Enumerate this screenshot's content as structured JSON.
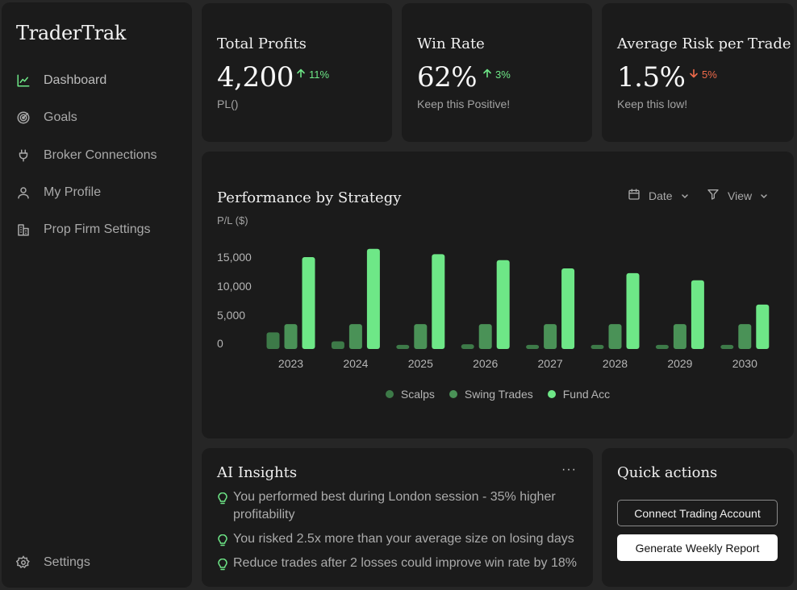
{
  "app": {
    "name": "TraderTrak"
  },
  "sidebar": {
    "items": [
      {
        "label": "Dashboard",
        "icon": "chart-line-icon",
        "active": true
      },
      {
        "label": "Goals",
        "icon": "target-icon",
        "active": false
      },
      {
        "label": "Broker Connections",
        "icon": "plug-icon",
        "active": false
      },
      {
        "label": "My Profile",
        "icon": "user-icon",
        "active": false
      },
      {
        "label": "Prop Firm Settings",
        "icon": "building-icon",
        "active": false
      }
    ],
    "settings_label": "Settings"
  },
  "stats": [
    {
      "title": "Total Profits",
      "value": "4,200",
      "delta": "11%",
      "direction": "up",
      "subtitle": "PL()"
    },
    {
      "title": "Win Rate",
      "value": "62%",
      "delta": "3%",
      "direction": "up",
      "subtitle": "Keep this Positive!"
    },
    {
      "title": "Average Risk per Trade",
      "value": "1.5%",
      "delta": "5%",
      "direction": "down",
      "subtitle": "Keep this low!"
    }
  ],
  "performance": {
    "title": "Performance by Strategy",
    "date_label": "Date",
    "view_label": "View"
  },
  "chart_data": {
    "type": "bar",
    "title": "Performance by Strategy",
    "ylabel": "P/L ($)",
    "xlabel": "",
    "categories": [
      "2023",
      "2024",
      "2025",
      "2026",
      "2027",
      "2028",
      "2029",
      "2030"
    ],
    "y_ticks": [
      "15,000",
      "10,000",
      "5,000",
      "0"
    ],
    "y_tick_values": [
      15000,
      10000,
      5000,
      0
    ],
    "ylim": [
      0,
      17000
    ],
    "grid": false,
    "legend_position": "bottom",
    "series": [
      {
        "name": "Scalps",
        "color": "#3d7a48",
        "values": [
          2800,
          1300,
          700,
          800,
          700,
          700,
          700,
          700
        ]
      },
      {
        "name": "Swing Trades",
        "color": "#4a9257",
        "values": [
          4200,
          4200,
          4200,
          4200,
          4200,
          4200,
          4200,
          4200
        ]
      },
      {
        "name": "Fund Acc",
        "color": "#6ee787",
        "values": [
          15500,
          16900,
          16000,
          15000,
          13600,
          12800,
          11600,
          7500
        ]
      }
    ]
  },
  "ai_insights": {
    "title": "AI Insights",
    "more_label": "···",
    "items": [
      "You performed best during London session - 35% higher profitability",
      "You risked 2.5x more than your average size on losing days",
      "Reduce trades after 2 losses could improve win rate by 18%"
    ]
  },
  "quick_actions": {
    "title": "Quick actions",
    "connect_label": "Connect Trading Account",
    "report_label": "Generate Weekly Report"
  },
  "colors": {
    "accent": "#6ee787",
    "danger": "#ef6a4a",
    "panel": "#1b1b1b",
    "background": "#262626"
  }
}
